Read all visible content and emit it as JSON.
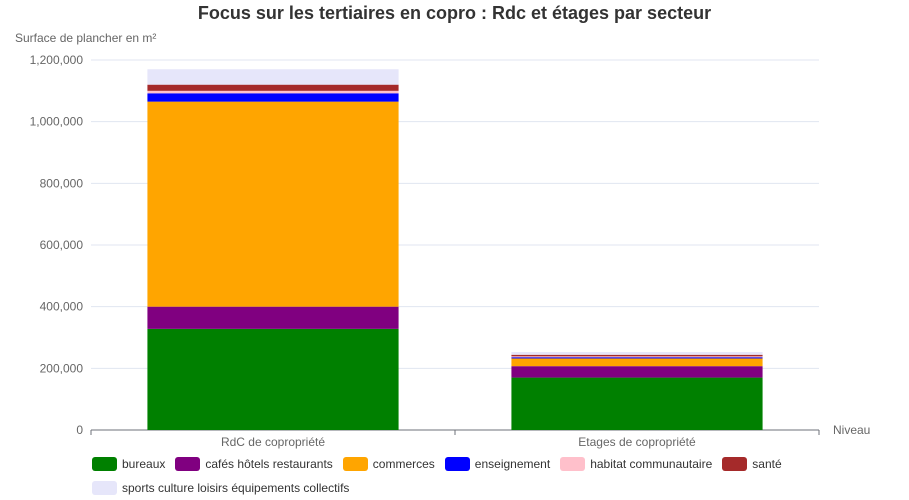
{
  "chart_data": {
    "type": "bar",
    "stacked": true,
    "title": "Focus sur les tertiaires en copro : Rdc et étages par secteur",
    "ylabel": "Surface de plancher en m²",
    "xlabel": "Niveau",
    "categories": [
      "RdC de copropriété",
      "Etages de copropriété"
    ],
    "ylim": [
      0,
      1200000
    ],
    "yticks": [
      "0",
      "200,000",
      "400,000",
      "600,000",
      "800,000",
      "1,000,000",
      "1,200,000"
    ],
    "series": [
      {
        "name": "bureaux",
        "color": "#008000",
        "values": [
          328000,
          170000
        ]
      },
      {
        "name": "cafés hôtels restaurants",
        "color": "#800080",
        "values": [
          72000,
          37000
        ]
      },
      {
        "name": "commerces",
        "color": "#FFA500",
        "values": [
          665000,
          25000
        ]
      },
      {
        "name": "enseignement",
        "color": "#0000FF",
        "values": [
          27000,
          4000
        ]
      },
      {
        "name": "habitat communautaire",
        "color": "#FFC0CB",
        "values": [
          8000,
          3000
        ]
      },
      {
        "name": "santé",
        "color": "#A52A2A",
        "values": [
          20000,
          5000
        ]
      },
      {
        "name": "sports culture loisirs équipements collectifs",
        "color": "#E6E6FA",
        "values": [
          50000,
          9000
        ]
      }
    ],
    "grid": true,
    "legend_position": "bottom"
  }
}
